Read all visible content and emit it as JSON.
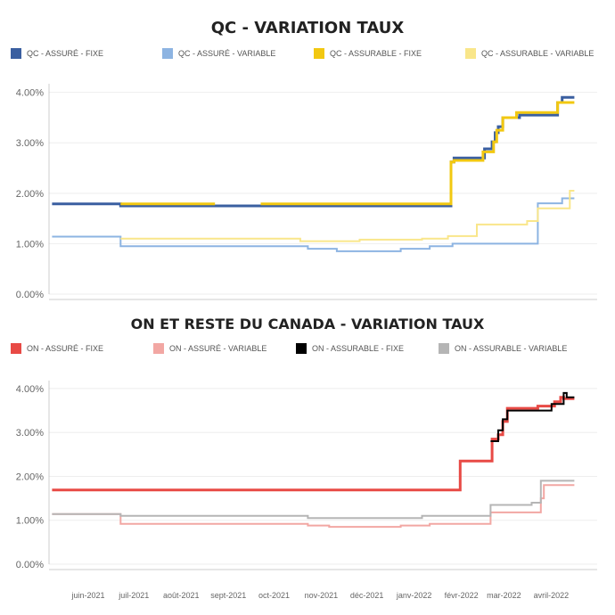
{
  "chart_data": [
    {
      "type": "line",
      "title": "QC - VARIATION TAUX",
      "legend_position": "top",
      "ylim": [
        0,
        4.1
      ],
      "y_ticks": [
        "0.00%",
        "1.00%",
        "2.00%",
        "3.00%",
        "4.00%"
      ],
      "y_tick_values": [
        0,
        1,
        2,
        3,
        4
      ],
      "grid": true,
      "x_range": [
        "2021-05-15",
        "2022-05-10"
      ],
      "series": [
        {
          "name": "QC - ASSURÉ - FIXE",
          "color": "#3a5fa0",
          "width": 3,
          "step_points": [
            [
              "2021-05-17",
              1.79
            ],
            [
              "2021-07-01",
              1.75
            ],
            [
              "2022-02-03",
              2.62
            ],
            [
              "2022-02-05",
              2.7
            ],
            [
              "2022-02-25",
              2.88
            ],
            [
              "2022-03-02",
              3.02
            ],
            [
              "2022-03-04",
              3.2
            ],
            [
              "2022-03-06",
              3.32
            ],
            [
              "2022-03-09",
              3.5
            ],
            [
              "2022-03-20",
              3.55
            ],
            [
              "2022-04-14",
              3.8
            ],
            [
              "2022-04-17",
              3.9
            ],
            [
              "2022-04-25",
              3.9
            ]
          ]
        },
        {
          "name": "QC - ASSURÉ - VARIABLE",
          "color": "#8db4e2",
          "width": 2,
          "step_points": [
            [
              "2021-05-17",
              1.14
            ],
            [
              "2021-07-01",
              0.95
            ],
            [
              "2021-11-01",
              0.9
            ],
            [
              "2021-11-20",
              0.85
            ],
            [
              "2022-01-01",
              0.9
            ],
            [
              "2022-01-20",
              0.95
            ],
            [
              "2022-02-04",
              1.0
            ],
            [
              "2022-04-01",
              1.8
            ],
            [
              "2022-04-17",
              1.9
            ],
            [
              "2022-04-25",
              1.9
            ]
          ]
        },
        {
          "name": "QC - ASSURABLE - FIXE",
          "color": "#f2c811",
          "width": 3,
          "step_points": [
            [
              "2021-07-01",
              1.79
            ],
            [
              "2021-09-01",
              null
            ],
            [
              "2021-10-01",
              1.79
            ],
            [
              "2022-02-03",
              2.62
            ],
            [
              "2022-02-05",
              2.65
            ],
            [
              "2022-02-24",
              2.82
            ],
            [
              "2022-03-03",
              3.02
            ],
            [
              "2022-03-05",
              3.25
            ],
            [
              "2022-03-09",
              3.5
            ],
            [
              "2022-03-18",
              3.6
            ],
            [
              "2022-04-14",
              3.8
            ],
            [
              "2022-04-25",
              3.8
            ]
          ]
        },
        {
          "name": "QC - ASSURABLE - VARIABLE",
          "color": "#f9e68a",
          "width": 2,
          "step_points": [
            [
              "2021-07-01",
              1.1
            ],
            [
              "2021-10-27",
              1.05
            ],
            [
              "2021-12-05",
              1.08
            ],
            [
              "2022-01-15",
              1.1
            ],
            [
              "2022-02-01",
              1.15
            ],
            [
              "2022-02-20",
              1.38
            ],
            [
              "2022-03-25",
              1.45
            ],
            [
              "2022-04-01",
              1.7
            ],
            [
              "2022-04-22",
              2.05
            ],
            [
              "2022-04-25",
              2.05
            ]
          ]
        }
      ]
    },
    {
      "type": "line",
      "title": "ON ET RESTE DU CANADA - VARIATION TAUX",
      "legend_position": "top",
      "ylim": [
        0,
        4.1
      ],
      "y_ticks": [
        "0.00%",
        "1.00%",
        "2.00%",
        "3.00%",
        "4.00%"
      ],
      "y_tick_values": [
        0,
        1,
        2,
        3,
        4
      ],
      "grid": true,
      "x_range": [
        "2021-05-15",
        "2022-05-10"
      ],
      "x_ticks": [
        "juin-2021",
        "juil-2021",
        "août-2021",
        "sept-2021",
        "oct-2021",
        "nov-2021",
        "déc-2021",
        "janv-2022",
        "févr-2022",
        "mar-2022",
        "avril-2022"
      ],
      "x_tick_dates": [
        "2021-06-01",
        "2021-07-01",
        "2021-08-01",
        "2021-09-01",
        "2021-10-01",
        "2021-11-01",
        "2021-12-01",
        "2022-01-01",
        "2022-02-01",
        "2022-03-01",
        "2022-04-01"
      ],
      "series": [
        {
          "name": "ON - ASSURÉ - FIXE",
          "color": "#e84a45",
          "width": 3,
          "step_points": [
            [
              "2021-05-17",
              1.69
            ],
            [
              "2022-02-09",
              2.35
            ],
            [
              "2022-03-02",
              2.85
            ],
            [
              "2022-03-06",
              2.95
            ],
            [
              "2022-03-09",
              3.25
            ],
            [
              "2022-03-12",
              3.55
            ],
            [
              "2022-04-01",
              3.6
            ],
            [
              "2022-04-12",
              3.7
            ],
            [
              "2022-04-16",
              3.8
            ],
            [
              "2022-04-18",
              3.77
            ],
            [
              "2022-04-25",
              3.77
            ]
          ]
        },
        {
          "name": "ON - ASSURÉ - VARIABLE",
          "color": "#f2a7a3",
          "width": 2,
          "step_points": [
            [
              "2021-05-17",
              1.14
            ],
            [
              "2021-07-01",
              0.92
            ],
            [
              "2021-11-01",
              0.88
            ],
            [
              "2021-11-15",
              0.85
            ],
            [
              "2022-01-01",
              0.88
            ],
            [
              "2022-01-20",
              0.92
            ],
            [
              "2022-03-01",
              1.18
            ],
            [
              "2022-04-03",
              1.5
            ],
            [
              "2022-04-05",
              1.8
            ],
            [
              "2022-04-25",
              1.8
            ]
          ]
        },
        {
          "name": "ON - ASSURABLE - FIXE",
          "color": "#000000",
          "width": 2,
          "step_points": [
            [
              "2022-03-01",
              2.8
            ],
            [
              "2022-03-06",
              3.05
            ],
            [
              "2022-03-09",
              3.3
            ],
            [
              "2022-03-12",
              3.5
            ],
            [
              "2022-04-10",
              3.65
            ],
            [
              "2022-04-18",
              3.9
            ],
            [
              "2022-04-20",
              3.8
            ],
            [
              "2022-04-25",
              3.8
            ]
          ]
        },
        {
          "name": "ON - ASSURABLE - VARIABLE",
          "color": "#b5b5b5",
          "width": 2,
          "step_points": [
            [
              "2021-05-17",
              1.14
            ],
            [
              "2021-07-01",
              1.1
            ],
            [
              "2021-11-01",
              1.05
            ],
            [
              "2022-01-15",
              1.1
            ],
            [
              "2022-03-01",
              1.35
            ],
            [
              "2022-03-28",
              1.4
            ],
            [
              "2022-04-03",
              1.9
            ],
            [
              "2022-04-25",
              1.9
            ]
          ]
        }
      ]
    }
  ]
}
